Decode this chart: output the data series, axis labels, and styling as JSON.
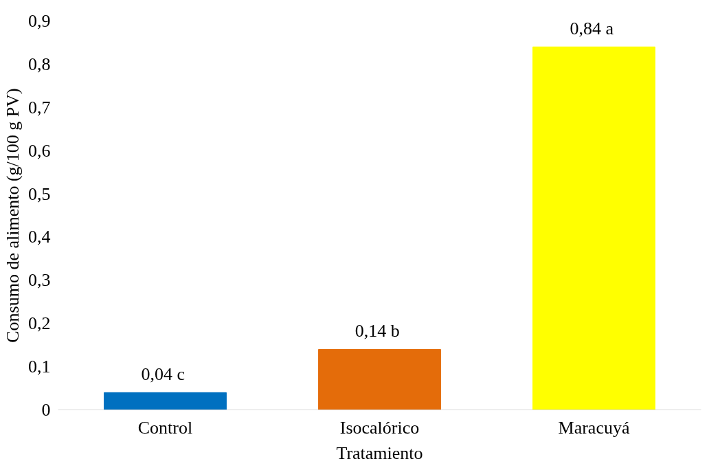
{
  "chart_data": {
    "type": "bar",
    "xlabel": "Tratamiento",
    "ylabel": "Consumo de alimento (g/100 g PV)",
    "categories": [
      "Control",
      "Isocalórico",
      "Maracuyá"
    ],
    "values": [
      0.04,
      0.14,
      0.84
    ],
    "colors": [
      "#0070c0",
      "#e46c0a",
      "#ffff00"
    ],
    "value_labels": [
      "0,04  c",
      "0,14  b",
      "0,84  a"
    ],
    "ylim": [
      0,
      0.9
    ],
    "yticks": [
      0,
      {
        "value": 0.1,
        "label": "0,1"
      },
      {
        "value": 0.2,
        "label": "0,2"
      },
      {
        "value": 0.3,
        "label": "0,3"
      },
      {
        "value": 0.4,
        "label": "0,4"
      },
      {
        "value": 0.5,
        "label": "0,5"
      },
      {
        "value": 0.6,
        "label": "0,6"
      },
      {
        "value": 0.7,
        "label": "0,7"
      },
      {
        "value": 0.8,
        "label": "0,8"
      },
      {
        "value": 0.9,
        "label": "0,9"
      }
    ],
    "grid": false
  }
}
